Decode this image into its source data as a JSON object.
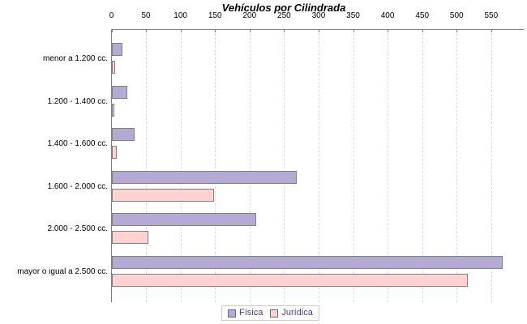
{
  "title": "Vehículos por Cilindrada",
  "chart_data": {
    "type": "bar",
    "orientation": "horizontal",
    "title": "Vehículos por Cilindrada",
    "categories": [
      "menor a 1.200 cc.",
      "1.200 - 1.400 cc.",
      "1.400 - 1.600 cc.",
      "1.600 - 2.000 cc.",
      "2.000 - 2.500 cc.",
      "mayor o igual a 2.500 cc."
    ],
    "series": [
      {
        "name": "Física",
        "color": "#b4aad4",
        "border": "#808080",
        "values": [
          14,
          21,
          32,
          266,
          208,
          565
        ]
      },
      {
        "name": "Jurídica",
        "color": "#ffd2d2",
        "border": "#808080",
        "values": [
          4,
          2,
          6,
          147,
          52,
          514
        ]
      }
    ],
    "xlim": [
      0,
      596
    ],
    "xticks": [
      0,
      50,
      100,
      150,
      200,
      250,
      300,
      350,
      400,
      450,
      500,
      550
    ],
    "grid": "vertical-dashed",
    "legend_position": "bottom"
  },
  "colors": {
    "background": "#ffffff",
    "axis": "#7f7f7f",
    "gridline": "#d9d9d9",
    "bar_fisica": "#b4aad4",
    "bar_juridica": "#ffd2d2",
    "bar_border": "#808080",
    "legend_border": "#cccccc",
    "legend_text": "#483d8b",
    "title_text": "#000000"
  }
}
